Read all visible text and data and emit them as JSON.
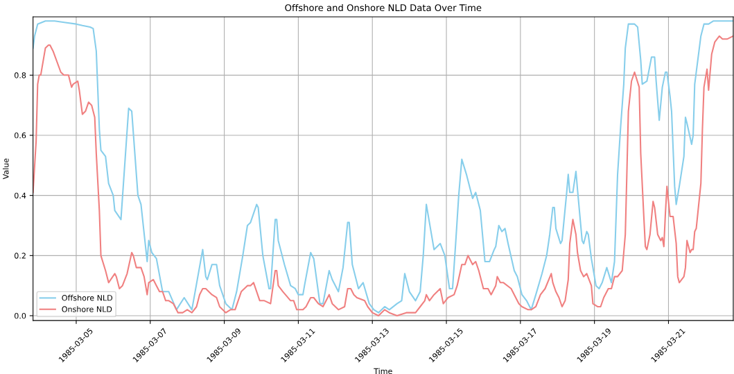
{
  "chart_data": {
    "type": "line",
    "title": "Offshore and Onshore NLD Data Over Time",
    "xlabel": "Time",
    "ylabel": "Value",
    "xlim": [
      "1985-03-03T20:00",
      "1985-03-22T18:00"
    ],
    "xticks": [
      "1985-03-05",
      "1985-03-07",
      "1985-03-09",
      "1985-03-11",
      "1985-03-13",
      "1985-03-15",
      "1985-03-17",
      "1985-03-19",
      "1985-03-21"
    ],
    "ylim": [
      -0.016,
      0.994
    ],
    "yticks": [
      {
        "value": 0,
        "label": "0.0"
      },
      {
        "value": 0.2,
        "label": "0.2"
      },
      {
        "value": 0.4,
        "label": "0.4"
      },
      {
        "value": 0.6,
        "label": "0.6"
      },
      {
        "value": 0.8,
        "label": "0.8"
      }
    ],
    "grid": true,
    "legend": "bottom left",
    "marker": "none",
    "line_style": "solid",
    "series": [
      {
        "name": "Offshore NLD",
        "color": "#87ceeb",
        "x": [
          "1985-03-03T20:00",
          "1985-03-03T21:00",
          "1985-03-03T23:00",
          "1985-03-04T04:00",
          "1985-03-04T10:00",
          "1985-03-04T17:00",
          "1985-03-05T00:00",
          "1985-03-05T04:00",
          "1985-03-05T09:00",
          "1985-03-05T11:00",
          "1985-03-05T13:00",
          "1985-03-05T15:00",
          "1985-03-05T16:00",
          "1985-03-05T19:00",
          "1985-03-05T21:00",
          "1985-03-06T00:00",
          "1985-03-06T01:00",
          "1985-03-06T05:00",
          "1985-03-06T10:00",
          "1985-03-06T12:00",
          "1985-03-06T16:00",
          "1985-03-06T18:00",
          "1985-03-06T22:00",
          "1985-03-06T23:00",
          "1985-03-07T01:00",
          "1985-03-07T04:00",
          "1985-03-07T08:00",
          "1985-03-07T12:00",
          "1985-03-07T17:00",
          "1985-03-07T22:00",
          "1985-03-08T03:00",
          "1985-03-08T10:00",
          "1985-03-08T12:00",
          "1985-03-08T13:00",
          "1985-03-08T16:00",
          "1985-03-08T19:00",
          "1985-03-08T21:00",
          "1985-03-09T01:00",
          "1985-03-09T05:00",
          "1985-03-09T08:00",
          "1985-03-09T12:00",
          "1985-03-09T15:00",
          "1985-03-09T17:00",
          "1985-03-09T21:00",
          "1985-03-09T22:00",
          "1985-03-10T01:00",
          "1985-03-10T05:00",
          "1985-03-10T06:00",
          "1985-03-10T09:00",
          "1985-03-10T10:00",
          "1985-03-10T11:00",
          "1985-03-10T15:00",
          "1985-03-10T19:00",
          "1985-03-10T22:00",
          "1985-03-11T00:00",
          "1985-03-11T03:00",
          "1985-03-11T04:00",
          "1985-03-11T08:00",
          "1985-03-11T10:00",
          "1985-03-11T14:00",
          "1985-03-11T16:00",
          "1985-03-11T20:00",
          "1985-03-11T22:00",
          "1985-03-12T02:00",
          "1985-03-12T05:00",
          "1985-03-12T08:00",
          "1985-03-12T09:00",
          "1985-03-12T11:00",
          "1985-03-12T15:00",
          "1985-03-12T18:00",
          "1985-03-12T22:00",
          "1985-03-13T01:00",
          "1985-03-13T04:00",
          "1985-03-13T08:00",
          "1985-03-13T11:00",
          "1985-03-13T16:00",
          "1985-03-13T19:00",
          "1985-03-13T21:00",
          "1985-03-14T00:00",
          "1985-03-14T04:00",
          "1985-03-14T07:00",
          "1985-03-14T09:00",
          "1985-03-14T11:00",
          "1985-03-14T14:00",
          "1985-03-14T16:00",
          "1985-03-14T20:00",
          "1985-03-14T23:00",
          "1985-03-15T02:00",
          "1985-03-15T04:00",
          "1985-03-15T06:00",
          "1985-03-15T08:00",
          "1985-03-15T10:00",
          "1985-03-15T13:00",
          "1985-03-15T17:00",
          "1985-03-15T19:00",
          "1985-03-15T22:00",
          "1985-03-16T01:00",
          "1985-03-16T04:00",
          "1985-03-16T07:00",
          "1985-03-16T08:00",
          "1985-03-16T10:00",
          "1985-03-16T12:00",
          "1985-03-16T14:00",
          "1985-03-16T16:00",
          "1985-03-16T20:00",
          "1985-03-16T22:00",
          "1985-03-17T01:00",
          "1985-03-17T04:00",
          "1985-03-17T07:00",
          "1985-03-17T10:00",
          "1985-03-17T14:00",
          "1985-03-17T17:00",
          "1985-03-17T19:00",
          "1985-03-17T21:00",
          "1985-03-17T22:00",
          "1985-03-17T23:00",
          "1985-03-18T02:00",
          "1985-03-18T03:00",
          "1985-03-18T06:00",
          "1985-03-18T07:00",
          "1985-03-18T08:00",
          "1985-03-18T10:00",
          "1985-03-18T12:00",
          "1985-03-18T13:00",
          "1985-03-18T16:00",
          "1985-03-18T17:00",
          "1985-03-18T19:00",
          "1985-03-18T20:00",
          "1985-03-18T22:00",
          "1985-03-19T01:00",
          "1985-03-19T03:00",
          "1985-03-19T05:00",
          "1985-03-19T08:00",
          "1985-03-19T11:00",
          "1985-03-19T13:00",
          "1985-03-19T15:00",
          "1985-03-19T17:00",
          "1985-03-19T19:00",
          "1985-03-19T20:00",
          "1985-03-19T22:00",
          "1985-03-20T02:00",
          "1985-03-20T04:00",
          "1985-03-20T06:00",
          "1985-03-20T07:00",
          "1985-03-20T10:00",
          "1985-03-20T13:00",
          "1985-03-20T15:00",
          "1985-03-20T16:00",
          "1985-03-20T18:00",
          "1985-03-20T20:00",
          "1985-03-20T22:00",
          "1985-03-20T23:00",
          "1985-03-21T01:00",
          "1985-03-21T02:00",
          "1985-03-21T04:00",
          "1985-03-21T05:00",
          "1985-03-21T07:00",
          "1985-03-21T10:00",
          "1985-03-21T11:00",
          "1985-03-21T12:00",
          "1985-03-21T15:00",
          "1985-03-21T16:00",
          "1985-03-21T17:00",
          "1985-03-21T19:00",
          "1985-03-21T21:00",
          "1985-03-21T23:00",
          "1985-03-22T02:00",
          "1985-03-22T05:00",
          "1985-03-22T18:00"
        ],
        "values": [
          0.89,
          0.93,
          0.97,
          0.98,
          0.98,
          0.975,
          0.97,
          0.965,
          0.96,
          0.955,
          0.88,
          0.62,
          0.55,
          0.53,
          0.44,
          0.4,
          0.35,
          0.32,
          0.69,
          0.68,
          0.4,
          0.37,
          0.18,
          0.25,
          0.21,
          0.19,
          0.08,
          0.08,
          0.02,
          0.06,
          0.02,
          0.22,
          0.13,
          0.12,
          0.17,
          0.17,
          0.1,
          0.04,
          0.02,
          0.08,
          0.2,
          0.3,
          0.31,
          0.37,
          0.36,
          0.2,
          0.09,
          0.09,
          0.32,
          0.32,
          0.25,
          0.17,
          0.1,
          0.09,
          0.07,
          0.07,
          0.1,
          0.21,
          0.19,
          0.04,
          0.04,
          0.15,
          0.12,
          0.08,
          0.16,
          0.31,
          0.31,
          0.17,
          0.09,
          0.11,
          0.04,
          0.02,
          0.01,
          0.03,
          0.02,
          0.04,
          0.05,
          0.14,
          0.08,
          0.05,
          0.08,
          0.2,
          0.37,
          0.28,
          0.22,
          0.24,
          0.2,
          0.09,
          0.09,
          0.24,
          0.4,
          0.52,
          0.47,
          0.39,
          0.41,
          0.35,
          0.18,
          0.18,
          0.22,
          0.23,
          0.3,
          0.28,
          0.29,
          0.24,
          0.15,
          0.13,
          0.07,
          0.05,
          0.02,
          0.07,
          0.14,
          0.2,
          0.27,
          0.36,
          0.36,
          0.29,
          0.24,
          0.25,
          0.41,
          0.47,
          0.41,
          0.41,
          0.48,
          0.42,
          0.25,
          0.24,
          0.28,
          0.27,
          0.19,
          0.1,
          0.09,
          0.11,
          0.16,
          0.11,
          0.18,
          0.47,
          0.63,
          0.77,
          0.89,
          0.97,
          0.97,
          0.96,
          0.85,
          0.77,
          0.78,
          0.86,
          0.86,
          0.78,
          0.65,
          0.76,
          0.81,
          0.81,
          0.73,
          0.68,
          0.43,
          0.37,
          0.43,
          0.53,
          0.66,
          0.64,
          0.57,
          0.6,
          0.77,
          0.85,
          0.93,
          0.97,
          0.97,
          0.98,
          0.98
        ]
      },
      {
        "name": "Onshore NLD",
        "color": "#f08080",
        "x": [
          "1985-03-03T20:00",
          "1985-03-03T22:00",
          "1985-03-03T23:00",
          "1985-03-04T00:00",
          "1985-03-04T01:00",
          "1985-03-04T04:00",
          "1985-03-04T06:00",
          "1985-03-04T07:00",
          "1985-03-04T09:00",
          "1985-03-04T14:00",
          "1985-03-04T16:00",
          "1985-03-04T19:00",
          "1985-03-04T21:00",
          "1985-03-04T22:00",
          "1985-03-05T01:00",
          "1985-03-05T02:00",
          "1985-03-05T04:00",
          "1985-03-05T06:00",
          "1985-03-05T08:00",
          "1985-03-05T10:00",
          "1985-03-05T12:00",
          "1985-03-05T13:00",
          "1985-03-05T15:00",
          "1985-03-05T16:00",
          "1985-03-05T19:00",
          "1985-03-05T21:00",
          "1985-03-06T01:00",
          "1985-03-06T02:00",
          "1985-03-06T04:00",
          "1985-03-06T06:00",
          "1985-03-06T09:00",
          "1985-03-06T12:00",
          "1985-03-06T13:00",
          "1985-03-06T15:00",
          "1985-03-06T18:00",
          "1985-03-06T20:00",
          "1985-03-06T22:00",
          "1985-03-06T23:00",
          "1985-03-07T02:00",
          "1985-03-07T04:00",
          "1985-03-07T06:00",
          "1985-03-07T08:00",
          "1985-03-07T10:00",
          "1985-03-07T12:00",
          "1985-03-07T15:00",
          "1985-03-07T18:00",
          "1985-03-07T21:00",
          "1985-03-08T00:00",
          "1985-03-08T03:00",
          "1985-03-08T06:00",
          "1985-03-08T08:00",
          "1985-03-08T10:00",
          "1985-03-08T12:00",
          "1985-03-08T16:00",
          "1985-03-08T19:00",
          "1985-03-08T21:00",
          "1985-03-09T01:00",
          "1985-03-09T04:00",
          "1985-03-09T07:00",
          "1985-03-09T11:00",
          "1985-03-09T13:00",
          "1985-03-09T15:00",
          "1985-03-09T17:00",
          "1985-03-09T19:00",
          "1985-03-09T23:00",
          "1985-03-10T02:00",
          "1985-03-10T06:00",
          "1985-03-10T09:00",
          "1985-03-10T10:00",
          "1985-03-10T11:00",
          "1985-03-10T14:00",
          "1985-03-10T19:00",
          "1985-03-10T21:00",
          "1985-03-10T23:00",
          "1985-03-11T03:00",
          "1985-03-11T05:00",
          "1985-03-11T08:00",
          "1985-03-11T10:00",
          "1985-03-11T13:00",
          "1985-03-11T16:00",
          "1985-03-11T20:00",
          "1985-03-11T22:00",
          "1985-03-12T02:00",
          "1985-03-12T06:00",
          "1985-03-12T08:00",
          "1985-03-12T10:00",
          "1985-03-12T12:00",
          "1985-03-12T14:00",
          "1985-03-12T19:00",
          "1985-03-12T21:00",
          "1985-03-13T00:00",
          "1985-03-13T04:00",
          "1985-03-13T08:00",
          "1985-03-13T11:00",
          "1985-03-13T16:00",
          "1985-03-13T22:00",
          "1985-03-14T04:00",
          "1985-03-14T07:00",
          "1985-03-14T10:00",
          "1985-03-14T11:00",
          "1985-03-14T13:00",
          "1985-03-14T16:00",
          "1985-03-14T20:00",
          "1985-03-14T22:00",
          "1985-03-15T01:00",
          "1985-03-15T05:00",
          "1985-03-15T07:00",
          "1985-03-15T10:00",
          "1985-03-15T12:00",
          "1985-03-15T14:00",
          "1985-03-15T17:00",
          "1985-03-15T19:00",
          "1985-03-15T21:00",
          "1985-03-16T00:00",
          "1985-03-16T03:00",
          "1985-03-16T05:00",
          "1985-03-16T08:00",
          "1985-03-16T09:00",
          "1985-03-16T11:00",
          "1985-03-16T13:00",
          "1985-03-16T18:00",
          "1985-03-16T20:00",
          "1985-03-16T23:00",
          "1985-03-17T01:00",
          "1985-03-17T05:00",
          "1985-03-17T07:00",
          "1985-03-17T10:00",
          "1985-03-17T13:00",
          "1985-03-17T16:00",
          "1985-03-17T20:00",
          "1985-03-17T21:00",
          "1985-03-17T23:00",
          "1985-03-18T01:00",
          "1985-03-18T03:00",
          "1985-03-18T05:00",
          "1985-03-18T07:00",
          "1985-03-18T08:00",
          "1985-03-18T10:00",
          "1985-03-18T12:00",
          "1985-03-18T13:00",
          "1985-03-18T15:00",
          "1985-03-18T17:00",
          "1985-03-18T19:00",
          "1985-03-18T22:00",
          "1985-03-18T23:00",
          "1985-03-19T02:00",
          "1985-03-19T04:00",
          "1985-03-19T06:00",
          "1985-03-19T09:00",
          "1985-03-19T11:00",
          "1985-03-19T13:00",
          "1985-03-19T15:00",
          "1985-03-19T18:00",
          "1985-03-19T20:00",
          "1985-03-19T21:00",
          "1985-03-19T22:00",
          "1985-03-20T00:00",
          "1985-03-20T02:00",
          "1985-03-20T05:00",
          "1985-03-20T06:00",
          "1985-03-20T08:00",
          "1985-03-20T09:00",
          "1985-03-20T10:00",
          "1985-03-20T12:00",
          "1985-03-20T14:00",
          "1985-03-20T15:00",
          "1985-03-20T17:00",
          "1985-03-20T19:00",
          "1985-03-20T20:00",
          "1985-03-20T21:00",
          "1985-03-20T22:00",
          "1985-03-20T23:00",
          "1985-03-21T01:00",
          "1985-03-21T03:00",
          "1985-03-21T05:00",
          "1985-03-21T06:00",
          "1985-03-21T07:00",
          "1985-03-21T10:00",
          "1985-03-21T11:00",
          "1985-03-21T12:00",
          "1985-03-21T13:00",
          "1985-03-21T14:00",
          "1985-03-21T15:00",
          "1985-03-21T16:00",
          "1985-03-21T17:00",
          "1985-03-21T18:00",
          "1985-03-21T21:00",
          "1985-03-21T22:00",
          "1985-03-21T23:00",
          "1985-03-22T01:00",
          "1985-03-22T02:00",
          "1985-03-22T04:00",
          "1985-03-22T06:00",
          "1985-03-22T09:00",
          "1985-03-22T11:00",
          "1985-03-22T14:00",
          "1985-03-22T18:00"
        ],
        "values": [
          0.41,
          0.58,
          0.77,
          0.8,
          0.8,
          0.89,
          0.9,
          0.9,
          0.88,
          0.81,
          0.8,
          0.8,
          0.76,
          0.77,
          0.78,
          0.75,
          0.67,
          0.68,
          0.71,
          0.7,
          0.66,
          0.54,
          0.35,
          0.2,
          0.15,
          0.11,
          0.14,
          0.13,
          0.09,
          0.1,
          0.14,
          0.21,
          0.2,
          0.16,
          0.16,
          0.13,
          0.07,
          0.11,
          0.12,
          0.1,
          0.08,
          0.08,
          0.05,
          0.05,
          0.04,
          0.01,
          0.01,
          0.02,
          0.01,
          0.03,
          0.07,
          0.09,
          0.09,
          0.07,
          0.06,
          0.03,
          0.01,
          0.02,
          0.02,
          0.08,
          0.09,
          0.1,
          0.1,
          0.11,
          0.05,
          0.05,
          0.04,
          0.15,
          0.15,
          0.1,
          0.08,
          0.05,
          0.05,
          0.02,
          0.02,
          0.03,
          0.06,
          0.06,
          0.04,
          0.03,
          0.07,
          0.04,
          0.02,
          0.03,
          0.09,
          0.09,
          0.07,
          0.06,
          0.05,
          0.03,
          0.01,
          0.0,
          0.02,
          0.01,
          0.0,
          0.01,
          0.01,
          0.03,
          0.05,
          0.07,
          0.05,
          0.07,
          0.09,
          0.04,
          0.06,
          0.07,
          0.1,
          0.17,
          0.17,
          0.2,
          0.17,
          0.18,
          0.15,
          0.09,
          0.09,
          0.07,
          0.1,
          0.13,
          0.11,
          0.11,
          0.09,
          0.07,
          0.04,
          0.03,
          0.02,
          0.02,
          0.03,
          0.07,
          0.09,
          0.14,
          0.11,
          0.08,
          0.06,
          0.03,
          0.05,
          0.12,
          0.24,
          0.32,
          0.27,
          0.21,
          0.15,
          0.13,
          0.14,
          0.1,
          0.04,
          0.03,
          0.03,
          0.06,
          0.09,
          0.09,
          0.13,
          0.13,
          0.15,
          0.27,
          0.47,
          0.68,
          0.78,
          0.81,
          0.76,
          0.54,
          0.33,
          0.23,
          0.22,
          0.27,
          0.38,
          0.36,
          0.27,
          0.25,
          0.26,
          0.23,
          0.34,
          0.43,
          0.33,
          0.33,
          0.24,
          0.13,
          0.11,
          0.13,
          0.16,
          0.25,
          0.23,
          0.21,
          0.22,
          0.22,
          0.28,
          0.29,
          0.44,
          0.62,
          0.76,
          0.82,
          0.75,
          0.87,
          0.91,
          0.93,
          0.92,
          0.92,
          0.93
        ]
      }
    ]
  }
}
